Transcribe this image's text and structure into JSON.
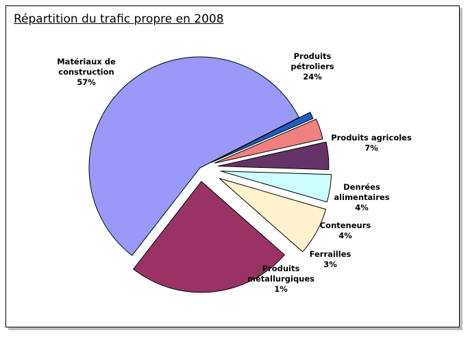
{
  "chart_data": {
    "type": "pie",
    "title": "Répartition du trafic propre en 2008",
    "slices": [
      {
        "name_lines": [
          "Matériaux de",
          "construction"
        ],
        "value": 57,
        "value_label": "57%",
        "color": "#9999f7"
      },
      {
        "name_lines": [
          "Produits",
          "pétroliers"
        ],
        "value": 24,
        "value_label": "24%",
        "color": "#993366"
      },
      {
        "name_lines": [
          "Produits agricoles"
        ],
        "value": 7,
        "value_label": "7%",
        "color": "#fff2cc"
      },
      {
        "name_lines": [
          "Denrées",
          "alimentaires"
        ],
        "value": 4,
        "value_label": "4%",
        "color": "#ccffff"
      },
      {
        "name_lines": [
          "Conteneurs"
        ],
        "value": 4,
        "value_label": "4%",
        "color": "#663366"
      },
      {
        "name_lines": [
          "Ferrailles"
        ],
        "value": 3,
        "value_label": "3%",
        "color": "#f08080"
      },
      {
        "name_lines": [
          "Produits",
          "métallurgiques"
        ],
        "value": 1,
        "value_label": "1%",
        "color": "#1f5fc4"
      }
    ]
  }
}
